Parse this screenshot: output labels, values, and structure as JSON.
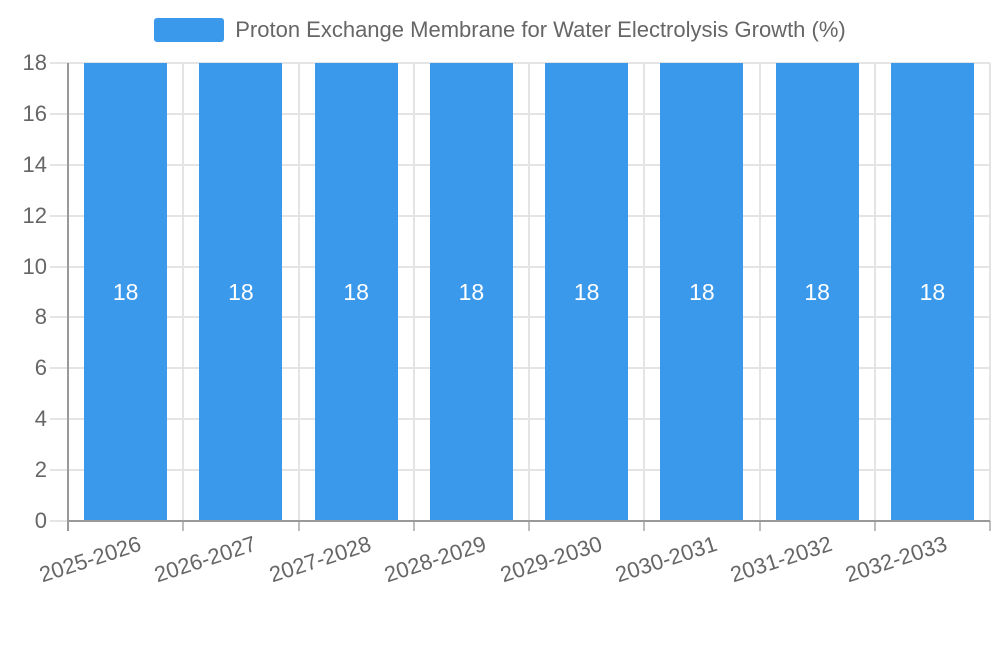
{
  "legend": {
    "label": "Proton Exchange Membrane for Water Electrolysis Growth (%)"
  },
  "chart_data": {
    "type": "bar",
    "title": "Proton Exchange Membrane for Water Electrolysis Growth (%)",
    "categories": [
      "2025-2026",
      "2026-2027",
      "2027-2028",
      "2028-2029",
      "2029-2030",
      "2030-2031",
      "2031-2032",
      "2032-2033"
    ],
    "series": [
      {
        "name": "Proton Exchange Membrane for Water Electrolysis Growth (%)",
        "values": [
          18,
          18,
          18,
          18,
          18,
          18,
          18,
          18
        ]
      }
    ],
    "value_labels": [
      "18",
      "18",
      "18",
      "18",
      "18",
      "18",
      "18",
      "18"
    ],
    "xlabel": "",
    "ylabel": "",
    "ylim": [
      0,
      18
    ],
    "yticks": [
      0,
      2,
      4,
      6,
      8,
      10,
      12,
      14,
      16,
      18
    ],
    "grid": true,
    "legend_position": "top",
    "colors": {
      "bar": "#3B99EC",
      "bar_label": "#FFFFFF",
      "axis_line": "#999999",
      "grid_line": "#E4E4E4",
      "tick_mark": "#BDBDBD",
      "label_text": "#666666",
      "background": "#FFFFFF"
    }
  }
}
